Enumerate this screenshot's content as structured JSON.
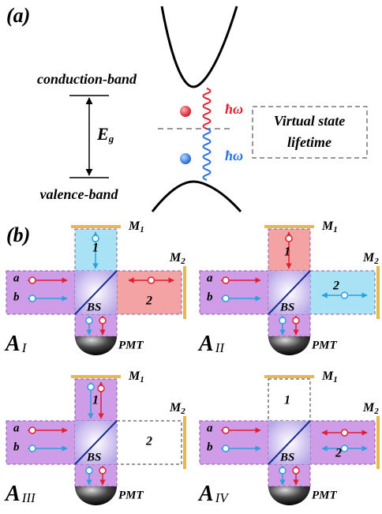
{
  "panel_a": {
    "label": "(a)",
    "conduction_band": "conduction-band",
    "valence_band": "valence-band",
    "gap": {
      "symbol": "E",
      "subscript": "g"
    },
    "photon_red": "ħω",
    "photon_blue": "ħω",
    "box_lines": [
      "Virtual state",
      "lifetime"
    ]
  },
  "panel_b": {
    "label": "(b)",
    "setups": [
      {
        "main": "A",
        "sub": "I",
        "m1": "M",
        "m1_sub": "1",
        "m2": "M",
        "m2_sub": "2",
        "a": "a",
        "b": "b",
        "bs": "BS",
        "pmt": "PMT",
        "arm1": "1",
        "arm2": "2"
      },
      {
        "main": "A",
        "sub": "II",
        "m1": "M",
        "m1_sub": "1",
        "m2": "M",
        "m2_sub": "2",
        "a": "a",
        "b": "b",
        "bs": "BS",
        "pmt": "PMT",
        "arm1": "1",
        "arm2": "2"
      },
      {
        "main": "A",
        "sub": "III",
        "m1": "M",
        "m1_sub": "1",
        "m2": "M",
        "m2_sub": "2",
        "a": "a",
        "b": "b",
        "bs": "BS",
        "pmt": "PMT",
        "arm1": "1",
        "arm2": "2"
      },
      {
        "main": "A",
        "sub": "IV",
        "m1": "M",
        "m1_sub": "1",
        "m2": "M",
        "m2_sub": "2",
        "a": "a",
        "b": "b",
        "bs": "BS",
        "pmt": "PMT",
        "arm1": "1",
        "arm2": "2"
      }
    ]
  }
}
